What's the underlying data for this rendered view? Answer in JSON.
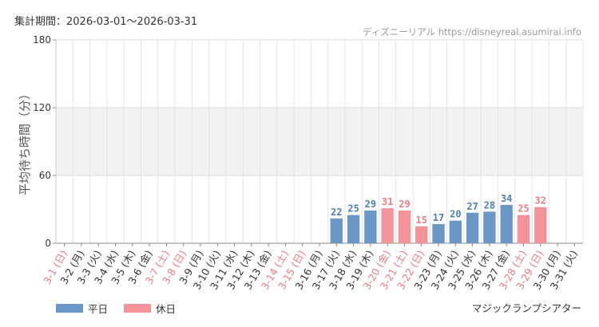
{
  "header": {
    "period": "集計期間：2026-03-01〜2026-03-31",
    "source": "ディズニーリアル https://disneyreal.asumirai.info"
  },
  "footer": {
    "facility": "マジックランプシアター"
  },
  "colors": {
    "weekday": "#6b97c7",
    "holiday": "#f4929a",
    "holiday_label": "#ee7c83",
    "weekday_label": "#4f7fb5",
    "band": "#f2f2f2",
    "grid": "#e4e4e4",
    "axis": "#888888"
  },
  "chart_data": {
    "type": "bar",
    "ylabel": "平均待ち時間（分）",
    "ylim": [
      0,
      180
    ],
    "yticks": [
      0,
      60,
      120,
      180
    ],
    "highlight_band": [
      60,
      120
    ],
    "grid": true,
    "legend_position": "bottom-left",
    "legend": [
      {
        "name": "平日",
        "key": "weekday"
      },
      {
        "name": "休日",
        "key": "holiday"
      }
    ],
    "categories": [
      {
        "label": "3-1 (日)",
        "type": "holiday",
        "value": null
      },
      {
        "label": "3-2 (月)",
        "type": "weekday",
        "value": null
      },
      {
        "label": "3-3 (火)",
        "type": "weekday",
        "value": null
      },
      {
        "label": "3-4 (水)",
        "type": "weekday",
        "value": null
      },
      {
        "label": "3-5 (木)",
        "type": "weekday",
        "value": null
      },
      {
        "label": "3-6 (金)",
        "type": "weekday",
        "value": null
      },
      {
        "label": "3-7 (土)",
        "type": "holiday",
        "value": null
      },
      {
        "label": "3-8 (日)",
        "type": "holiday",
        "value": null
      },
      {
        "label": "3-9 (月)",
        "type": "weekday",
        "value": null
      },
      {
        "label": "3-10 (火)",
        "type": "weekday",
        "value": null
      },
      {
        "label": "3-11 (水)",
        "type": "weekday",
        "value": null
      },
      {
        "label": "3-12 (木)",
        "type": "weekday",
        "value": null
      },
      {
        "label": "3-13 (金)",
        "type": "weekday",
        "value": null
      },
      {
        "label": "3-14 (土)",
        "type": "holiday",
        "value": null
      },
      {
        "label": "3-15 (日)",
        "type": "holiday",
        "value": null
      },
      {
        "label": "3-16 (月)",
        "type": "weekday",
        "value": null
      },
      {
        "label": "3-17 (火)",
        "type": "weekday",
        "value": 22
      },
      {
        "label": "3-18 (水)",
        "type": "weekday",
        "value": 25
      },
      {
        "label": "3-19 (木)",
        "type": "weekday",
        "value": 29
      },
      {
        "label": "3-20 (金)",
        "type": "holiday",
        "value": 31
      },
      {
        "label": "3-21 (土)",
        "type": "holiday",
        "value": 29
      },
      {
        "label": "3-22 (日)",
        "type": "holiday",
        "value": 15
      },
      {
        "label": "3-23 (月)",
        "type": "weekday",
        "value": 17
      },
      {
        "label": "3-24 (火)",
        "type": "weekday",
        "value": 20
      },
      {
        "label": "3-25 (水)",
        "type": "weekday",
        "value": 27
      },
      {
        "label": "3-26 (木)",
        "type": "weekday",
        "value": 28
      },
      {
        "label": "3-27 (金)",
        "type": "weekday",
        "value": 34
      },
      {
        "label": "3-28 (土)",
        "type": "holiday",
        "value": 25
      },
      {
        "label": "3-29 (日)",
        "type": "holiday",
        "value": 32
      },
      {
        "label": "3-30 (月)",
        "type": "weekday",
        "value": null
      },
      {
        "label": "3-31 (火)",
        "type": "weekday",
        "value": null
      }
    ]
  }
}
